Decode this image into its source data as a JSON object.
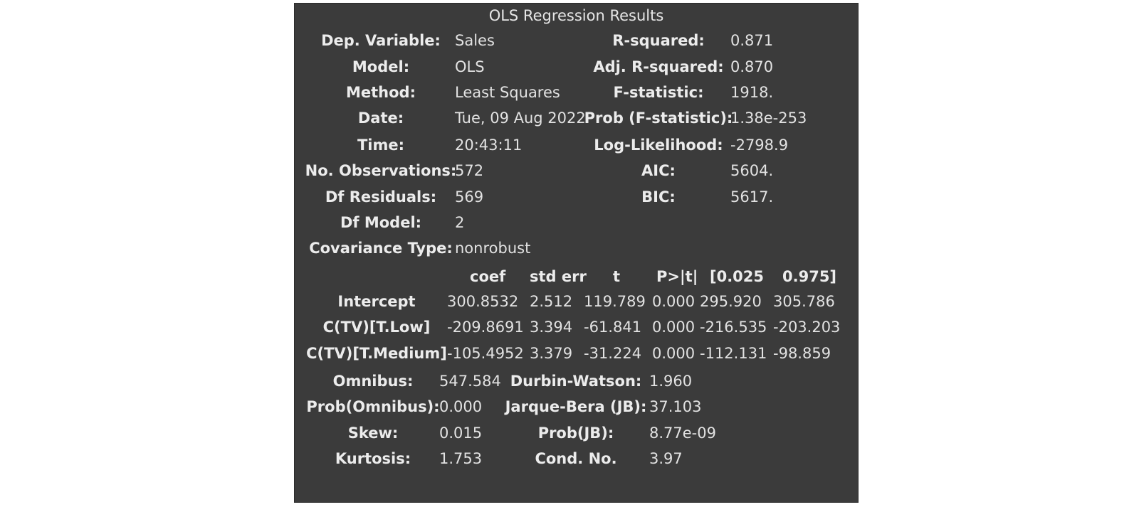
{
  "caption": "OLS Regression Results",
  "summary": {
    "left": [
      {
        "label": "Dep. Variable:",
        "value": "Sales"
      },
      {
        "label": "Model:",
        "value": "OLS"
      },
      {
        "label": "Method:",
        "value": "Least Squares"
      },
      {
        "label": "Date:",
        "value": "Tue, 09 Aug 2022"
      },
      {
        "label": "Time:",
        "value": "20:43:11"
      },
      {
        "label": "No. Observations:",
        "value": "572"
      },
      {
        "label": "Df Residuals:",
        "value": "569"
      },
      {
        "label": "Df Model:",
        "value": "2"
      },
      {
        "label": "Covariance Type:",
        "value": "nonrobust"
      }
    ],
    "right": [
      {
        "label": "R-squared:",
        "value": "0.871"
      },
      {
        "label": "Adj. R-squared:",
        "value": "0.870"
      },
      {
        "label": "F-statistic:",
        "value": "1918."
      },
      {
        "label": "Prob (F-statistic):",
        "value": "1.38e-253"
      },
      {
        "label": "Log-Likelihood:",
        "value": "-2798.9"
      },
      {
        "label": "AIC:",
        "value": "5604."
      },
      {
        "label": "BIC:",
        "value": "5617."
      }
    ]
  },
  "coef_table": {
    "headers": [
      "coef",
      "std err",
      "t",
      "P>|t|",
      "[0.025",
      "0.975]"
    ],
    "rows": [
      {
        "name": "Intercept",
        "values": [
          "300.8532",
          "2.512",
          "119.789",
          "0.000",
          "295.920",
          "305.786"
        ]
      },
      {
        "name": "C(TV)[T.Low]",
        "values": [
          "-209.8691",
          "3.394",
          "-61.841",
          "0.000",
          "-216.535",
          "-203.203"
        ]
      },
      {
        "name": "C(TV)[T.Medium]",
        "values": [
          "-105.4952",
          "3.379",
          "-31.224",
          "0.000",
          "-112.131",
          "-98.859"
        ]
      }
    ]
  },
  "diagnostics": {
    "left": [
      {
        "label": "Omnibus:",
        "value": "547.584"
      },
      {
        "label": "Prob(Omnibus):",
        "value": "0.000"
      },
      {
        "label": "Skew:",
        "value": "0.015"
      },
      {
        "label": "Kurtosis:",
        "value": "1.753"
      }
    ],
    "right": [
      {
        "label": "Durbin-Watson:",
        "value": "1.960"
      },
      {
        "label": "Jarque-Bera (JB):",
        "value": "37.103"
      },
      {
        "label": "Prob(JB):",
        "value": "8.77e-09"
      },
      {
        "label": "Cond. No.",
        "value": "3.97"
      }
    ]
  }
}
